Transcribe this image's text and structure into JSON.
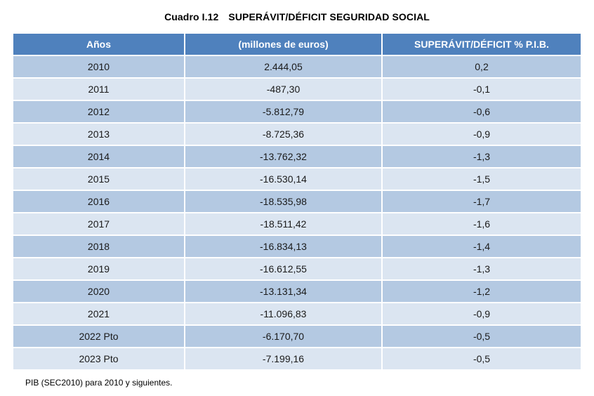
{
  "page": {
    "title_label": "Cuadro I.12",
    "title_text": "SUPERÁVIT/DÉFICIT SEGURIDAD SOCIAL",
    "footnote": "PIB (SEC2010) para 2010 y siguientes."
  },
  "table": {
    "headers": [
      "Años",
      "(millones de euros)",
      "SUPERÁVIT/DÉFICIT % P.I.B."
    ],
    "rows": [
      [
        "2010",
        "2.444,05",
        "0,2"
      ],
      [
        "2011",
        "-487,30",
        "-0,1"
      ],
      [
        "2012",
        "-5.812,79",
        "-0,6"
      ],
      [
        "2013",
        "-8.725,36",
        "-0,9"
      ],
      [
        "2014",
        "-13.762,32",
        "-1,3"
      ],
      [
        "2015",
        "-16.530,14",
        "-1,5"
      ],
      [
        "2016",
        "-18.535,98",
        "-1,7"
      ],
      [
        "2017",
        "-18.511,42",
        "-1,6"
      ],
      [
        "2018",
        "-16.834,13",
        "-1,4"
      ],
      [
        "2019",
        "-16.612,55",
        "-1,3"
      ],
      [
        "2020",
        "-13.131,34",
        "-1,2"
      ],
      [
        "2021",
        "-11.096,83",
        "-0,9"
      ],
      [
        "2022 Pto",
        "-6.170,70",
        "-0,5"
      ],
      [
        "2023 Pto",
        "-7.199,16",
        "-0,5"
      ]
    ]
  },
  "colors": {
    "header_bg": "#4f81bd",
    "row_dark_bg": "#b4c9e2",
    "row_light_bg": "#dbe5f1",
    "header_text": "#ffffff",
    "body_text": "#1a1a1a"
  }
}
